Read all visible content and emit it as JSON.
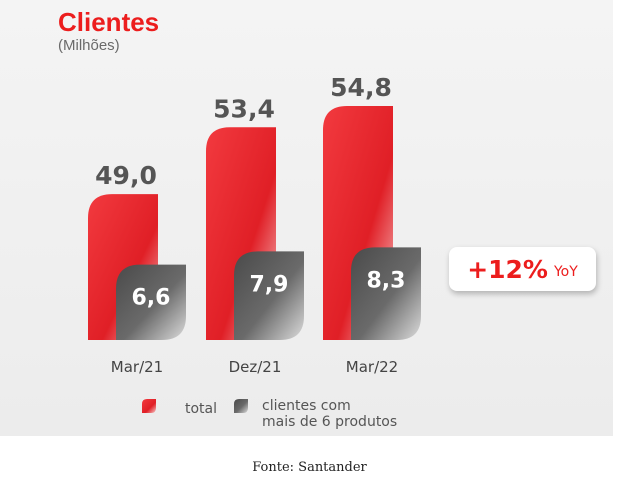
{
  "chart_data": {
    "type": "bar",
    "title": "Clientes",
    "subtitle": "(Milhões)",
    "categories": [
      "Mar/21",
      "Dez/21",
      "Mar/22"
    ],
    "series": [
      {
        "name": "total",
        "values": [
          49.0,
          53.4,
          54.8
        ],
        "labels": [
          "49,0",
          "53,4",
          "54,8"
        ],
        "color": "#e5222a"
      },
      {
        "name": "clientes com mais de 6 produtos",
        "values": [
          6.6,
          7.9,
          8.3
        ],
        "labels": [
          "6,6",
          "7,9",
          "8,3"
        ],
        "color": "#555555"
      }
    ],
    "legend": [
      "total",
      "clientes com",
      "mais de 6 produtos"
    ],
    "annotation": {
      "value": "+12%",
      "unit": "YoY"
    }
  },
  "source": "Fonte: Santander"
}
